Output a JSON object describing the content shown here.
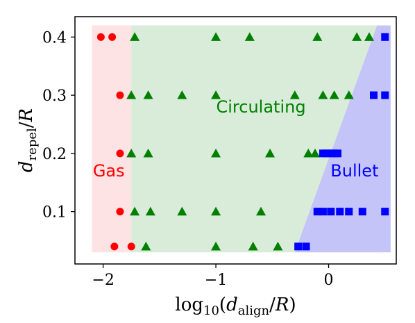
{
  "chart_data": {
    "type": "scatter",
    "xlabel": "log10(d_align/R)",
    "ylabel": "d_repel/R",
    "x_ticks": [
      -2,
      -1,
      0
    ],
    "x_tick_labels": [
      "−2",
      "−1",
      "0"
    ],
    "y_ticks": [
      0.1,
      0.2,
      0.3,
      0.4
    ],
    "y_tick_labels": [
      "0.1",
      "0.2",
      "0.3",
      "0.4"
    ],
    "xlim": [
      -2.25,
      0.6
    ],
    "ylim": [
      0.01,
      0.435
    ],
    "grid": false,
    "regions": [
      {
        "label": "Gas",
        "color": "#ff0000",
        "fill": "#fde3e3",
        "x_range": [
          -2.1,
          -1.75
        ],
        "y_range": [
          0.03,
          0.42
        ],
        "label_pos": [
          -1.95,
          0.17
        ]
      },
      {
        "label": "Circulating",
        "color": "#008000",
        "fill": "#d9ecd9",
        "x_range": [
          -1.75,
          0.45
        ],
        "y_range": [
          0.03,
          0.42
        ],
        "label_pos": [
          -0.6,
          0.28
        ]
      },
      {
        "label": "Bullet",
        "color": "#0000ff",
        "fill": "#c4c4f8",
        "polygon": [
          [
            -0.3,
            0.03
          ],
          [
            0.55,
            0.03
          ],
          [
            0.55,
            0.42
          ],
          [
            0.43,
            0.42
          ]
        ],
        "label_pos": [
          0.23,
          0.17
        ]
      }
    ],
    "series": [
      {
        "name": "Gas",
        "color": "#ff0000",
        "marker": "circle",
        "points": [
          [
            -2.02,
            0.4
          ],
          [
            -1.92,
            0.4
          ],
          [
            -1.85,
            0.3
          ],
          [
            -1.85,
            0.2
          ],
          [
            -1.85,
            0.1
          ],
          [
            -1.9,
            0.04
          ],
          [
            -1.75,
            0.04
          ]
        ]
      },
      {
        "name": "Circulating",
        "color": "#008000",
        "marker": "triangle",
        "points": [
          [
            -1.72,
            0.4
          ],
          [
            -1.0,
            0.4
          ],
          [
            -0.7,
            0.4
          ],
          [
            -0.1,
            0.4
          ],
          [
            0.25,
            0.4
          ],
          [
            0.36,
            0.4
          ],
          [
            -1.75,
            0.3
          ],
          [
            -1.6,
            0.3
          ],
          [
            -1.3,
            0.3
          ],
          [
            -1.0,
            0.3
          ],
          [
            -0.3,
            0.3
          ],
          [
            -0.05,
            0.3
          ],
          [
            0.05,
            0.3
          ],
          [
            0.18,
            0.3
          ],
          [
            -1.75,
            0.2
          ],
          [
            -1.6,
            0.2
          ],
          [
            -1.0,
            0.2
          ],
          [
            -0.52,
            0.2
          ],
          [
            -0.18,
            0.2
          ],
          [
            -0.12,
            0.2
          ],
          [
            -1.72,
            0.1
          ],
          [
            -1.58,
            0.1
          ],
          [
            -1.3,
            0.1
          ],
          [
            -1.0,
            0.1
          ],
          [
            -0.6,
            0.1
          ],
          [
            -1.62,
            0.04
          ],
          [
            -1.0,
            0.04
          ],
          [
            -0.67,
            0.04
          ],
          [
            -0.45,
            0.04
          ]
        ]
      },
      {
        "name": "Bullet",
        "color": "#0000ff",
        "marker": "square",
        "points": [
          [
            0.5,
            0.4
          ],
          [
            0.4,
            0.3
          ],
          [
            0.5,
            0.3
          ],
          [
            -0.05,
            0.2
          ],
          [
            -0.02,
            0.2
          ],
          [
            0.02,
            0.2
          ],
          [
            0.05,
            0.2
          ],
          [
            0.08,
            0.2
          ],
          [
            -0.1,
            0.1
          ],
          [
            -0.05,
            0.1
          ],
          [
            0.02,
            0.1
          ],
          [
            0.1,
            0.1
          ],
          [
            0.18,
            0.1
          ],
          [
            0.3,
            0.1
          ],
          [
            0.5,
            0.1
          ],
          [
            -0.27,
            0.04
          ],
          [
            -0.2,
            0.04
          ]
        ]
      }
    ]
  }
}
